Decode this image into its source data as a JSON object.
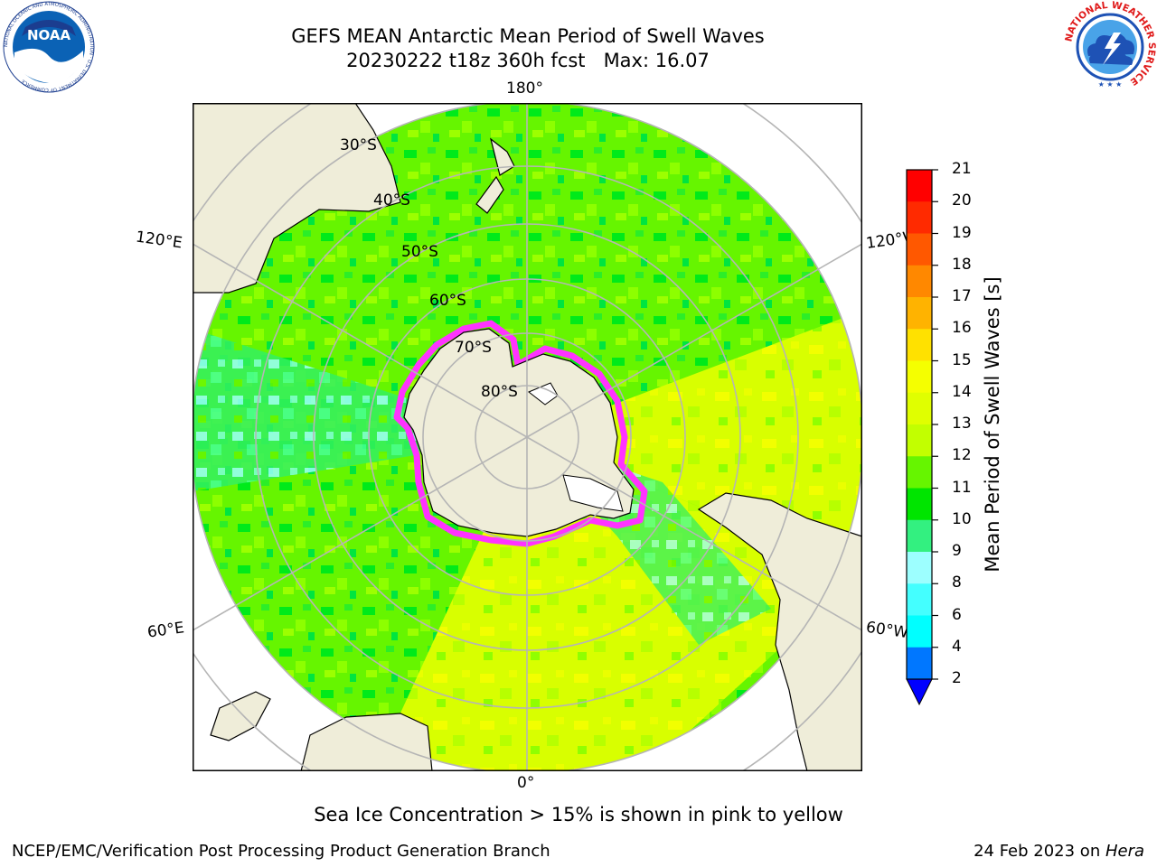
{
  "title": {
    "line1": "GEFS MEAN Antarctic Mean Period of Swell Waves",
    "line2": "20230222 t18z 360h fcst   Max: 16.07"
  },
  "logos": {
    "left": "noaa-logo",
    "left_text": "NOAA",
    "left_ring_text": "NATIONAL OCEANIC AND ATMOSPHERIC ADMINISTRATION · U.S. DEPARTMENT OF COMMERCE",
    "right": "nws-logo",
    "right_ring_text": "NATIONAL WEATHER SERVICE"
  },
  "map": {
    "projection": "south-polar-stereographic",
    "longitude_labels": {
      "top": "180°",
      "bottom": "0°",
      "upper_left": "120°E",
      "lower_left": "60°E",
      "upper_right": "120°W",
      "lower_right": "60°W"
    },
    "latitude_labels": [
      "30°S",
      "40°S",
      "50°S",
      "60°S",
      "70°S",
      "80°S"
    ]
  },
  "colorbar": {
    "label": "Mean Period of Swell Waves [s]",
    "ticks": [
      "21",
      "20",
      "19",
      "18",
      "17",
      "16",
      "15",
      "14",
      "13",
      "12",
      "11",
      "10",
      "9",
      "8",
      "6",
      "4",
      "2"
    ],
    "colors": [
      "#ff0000",
      "#ff2800",
      "#ff5500",
      "#ff8000",
      "#ffaa00",
      "#ffd500",
      "#ffff00",
      "#eaff00",
      "#c8ff00",
      "#80ff00",
      "#00ee00",
      "#00dd33",
      "#33ff88",
      "#99ffff",
      "#44ffff",
      "#00ffff",
      "#00ccff",
      "#0066ff",
      "#0000ff"
    ],
    "extend_color": "#0000ff"
  },
  "footnote": "Sea Ice Concentration > 15% is shown in pink to yellow",
  "credits": {
    "left": "NCEP/EMC/Verification Post Processing Product Generation Branch",
    "right_prefix": "24 Feb 2023 on ",
    "right_host": "Hera"
  },
  "ice_color": "#ff33ff",
  "land_color": "#efedd9"
}
